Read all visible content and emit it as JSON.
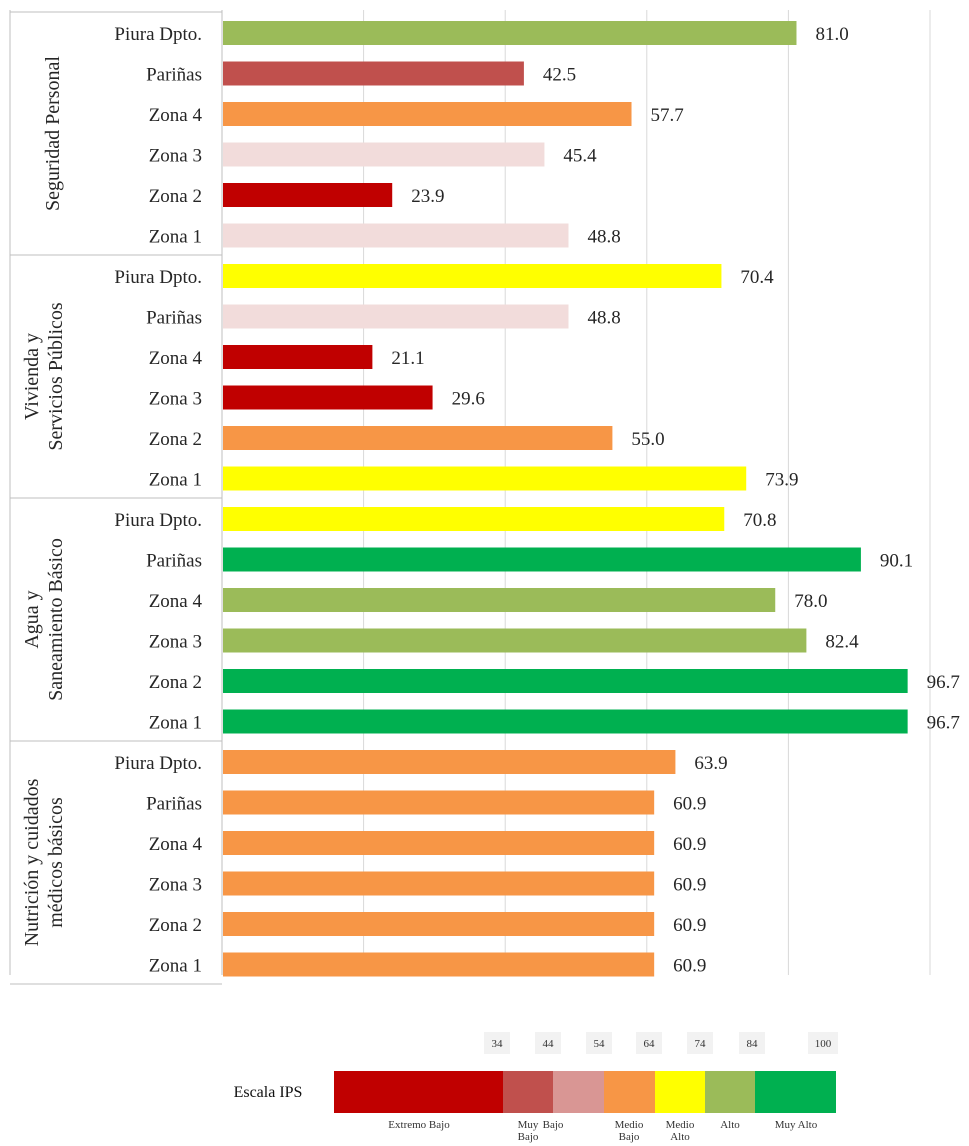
{
  "chart_data": {
    "type": "bar",
    "orientation": "horizontal",
    "xlim": [
      0,
      100
    ],
    "grid": true,
    "groups": [
      {
        "name": "Seguridad Personal",
        "categories": [
          "Piura Dpto.",
          "Pariñas",
          "Zona 4",
          "Zona 3",
          "Zona 2",
          "Zona 1"
        ],
        "values": [
          "81.0",
          "42.5",
          "57.7",
          "45.4",
          "23.9",
          "48.8"
        ],
        "colors": [
          "#9BBB59",
          "#C0504D",
          "#F79646",
          "#F2DCDB",
          "#C00000",
          "#F2DCDB"
        ]
      },
      {
        "name": "Vivienda y Servicios Públicos",
        "categories": [
          "Piura Dpto.",
          "Pariñas",
          "Zona 4",
          "Zona 3",
          "Zona 2",
          "Zona 1"
        ],
        "values": [
          "70.4",
          "48.8",
          "21.1",
          "29.6",
          "55.0",
          "73.9"
        ],
        "colors": [
          "#FFFF00",
          "#F2DCDB",
          "#C00000",
          "#C00000",
          "#F79646",
          "#FFFF00"
        ]
      },
      {
        "name": "Agua y Saneamiento Básico",
        "categories": [
          "Piura Dpto.",
          "Pariñas",
          "Zona 4",
          "Zona 3",
          "Zona 2",
          "Zona 1"
        ],
        "values": [
          "70.8",
          "90.1",
          "78.0",
          "82.4",
          "96.7",
          "96.7"
        ],
        "colors": [
          "#FFFF00",
          "#00B050",
          "#9BBB59",
          "#9BBB59",
          "#00B050",
          "#00B050"
        ]
      },
      {
        "name": "Nutrición y cuidados médicos básicos",
        "categories": [
          "Piura Dpto.",
          "Pariñas",
          "Zona 4",
          "Zona 3",
          "Zona 2",
          "Zona 1"
        ],
        "values": [
          "63.9",
          "60.9",
          "60.9",
          "60.9",
          "60.9",
          "60.9"
        ],
        "colors": [
          "#F79646",
          "#F79646",
          "#F79646",
          "#F79646",
          "#F79646",
          "#F79646"
        ]
      }
    ]
  },
  "scale": {
    "title": "Escala IPS",
    "ticks": [
      "34",
      "44",
      "54",
      "64",
      "74",
      "84",
      "100"
    ],
    "bands": [
      {
        "name": "Extremo Bajo",
        "color": "#C00000"
      },
      {
        "name": "Muy Bajo",
        "color": "#C0504D"
      },
      {
        "name": "Bajo",
        "color": "#D99694"
      },
      {
        "name": "Medio Bajo",
        "color": "#F79646"
      },
      {
        "name": "Medio Alto",
        "color": "#FFFF00"
      },
      {
        "name": "Alto",
        "color": "#9BBB59"
      },
      {
        "name": "Muy Alto",
        "color": "#00B050"
      }
    ]
  }
}
